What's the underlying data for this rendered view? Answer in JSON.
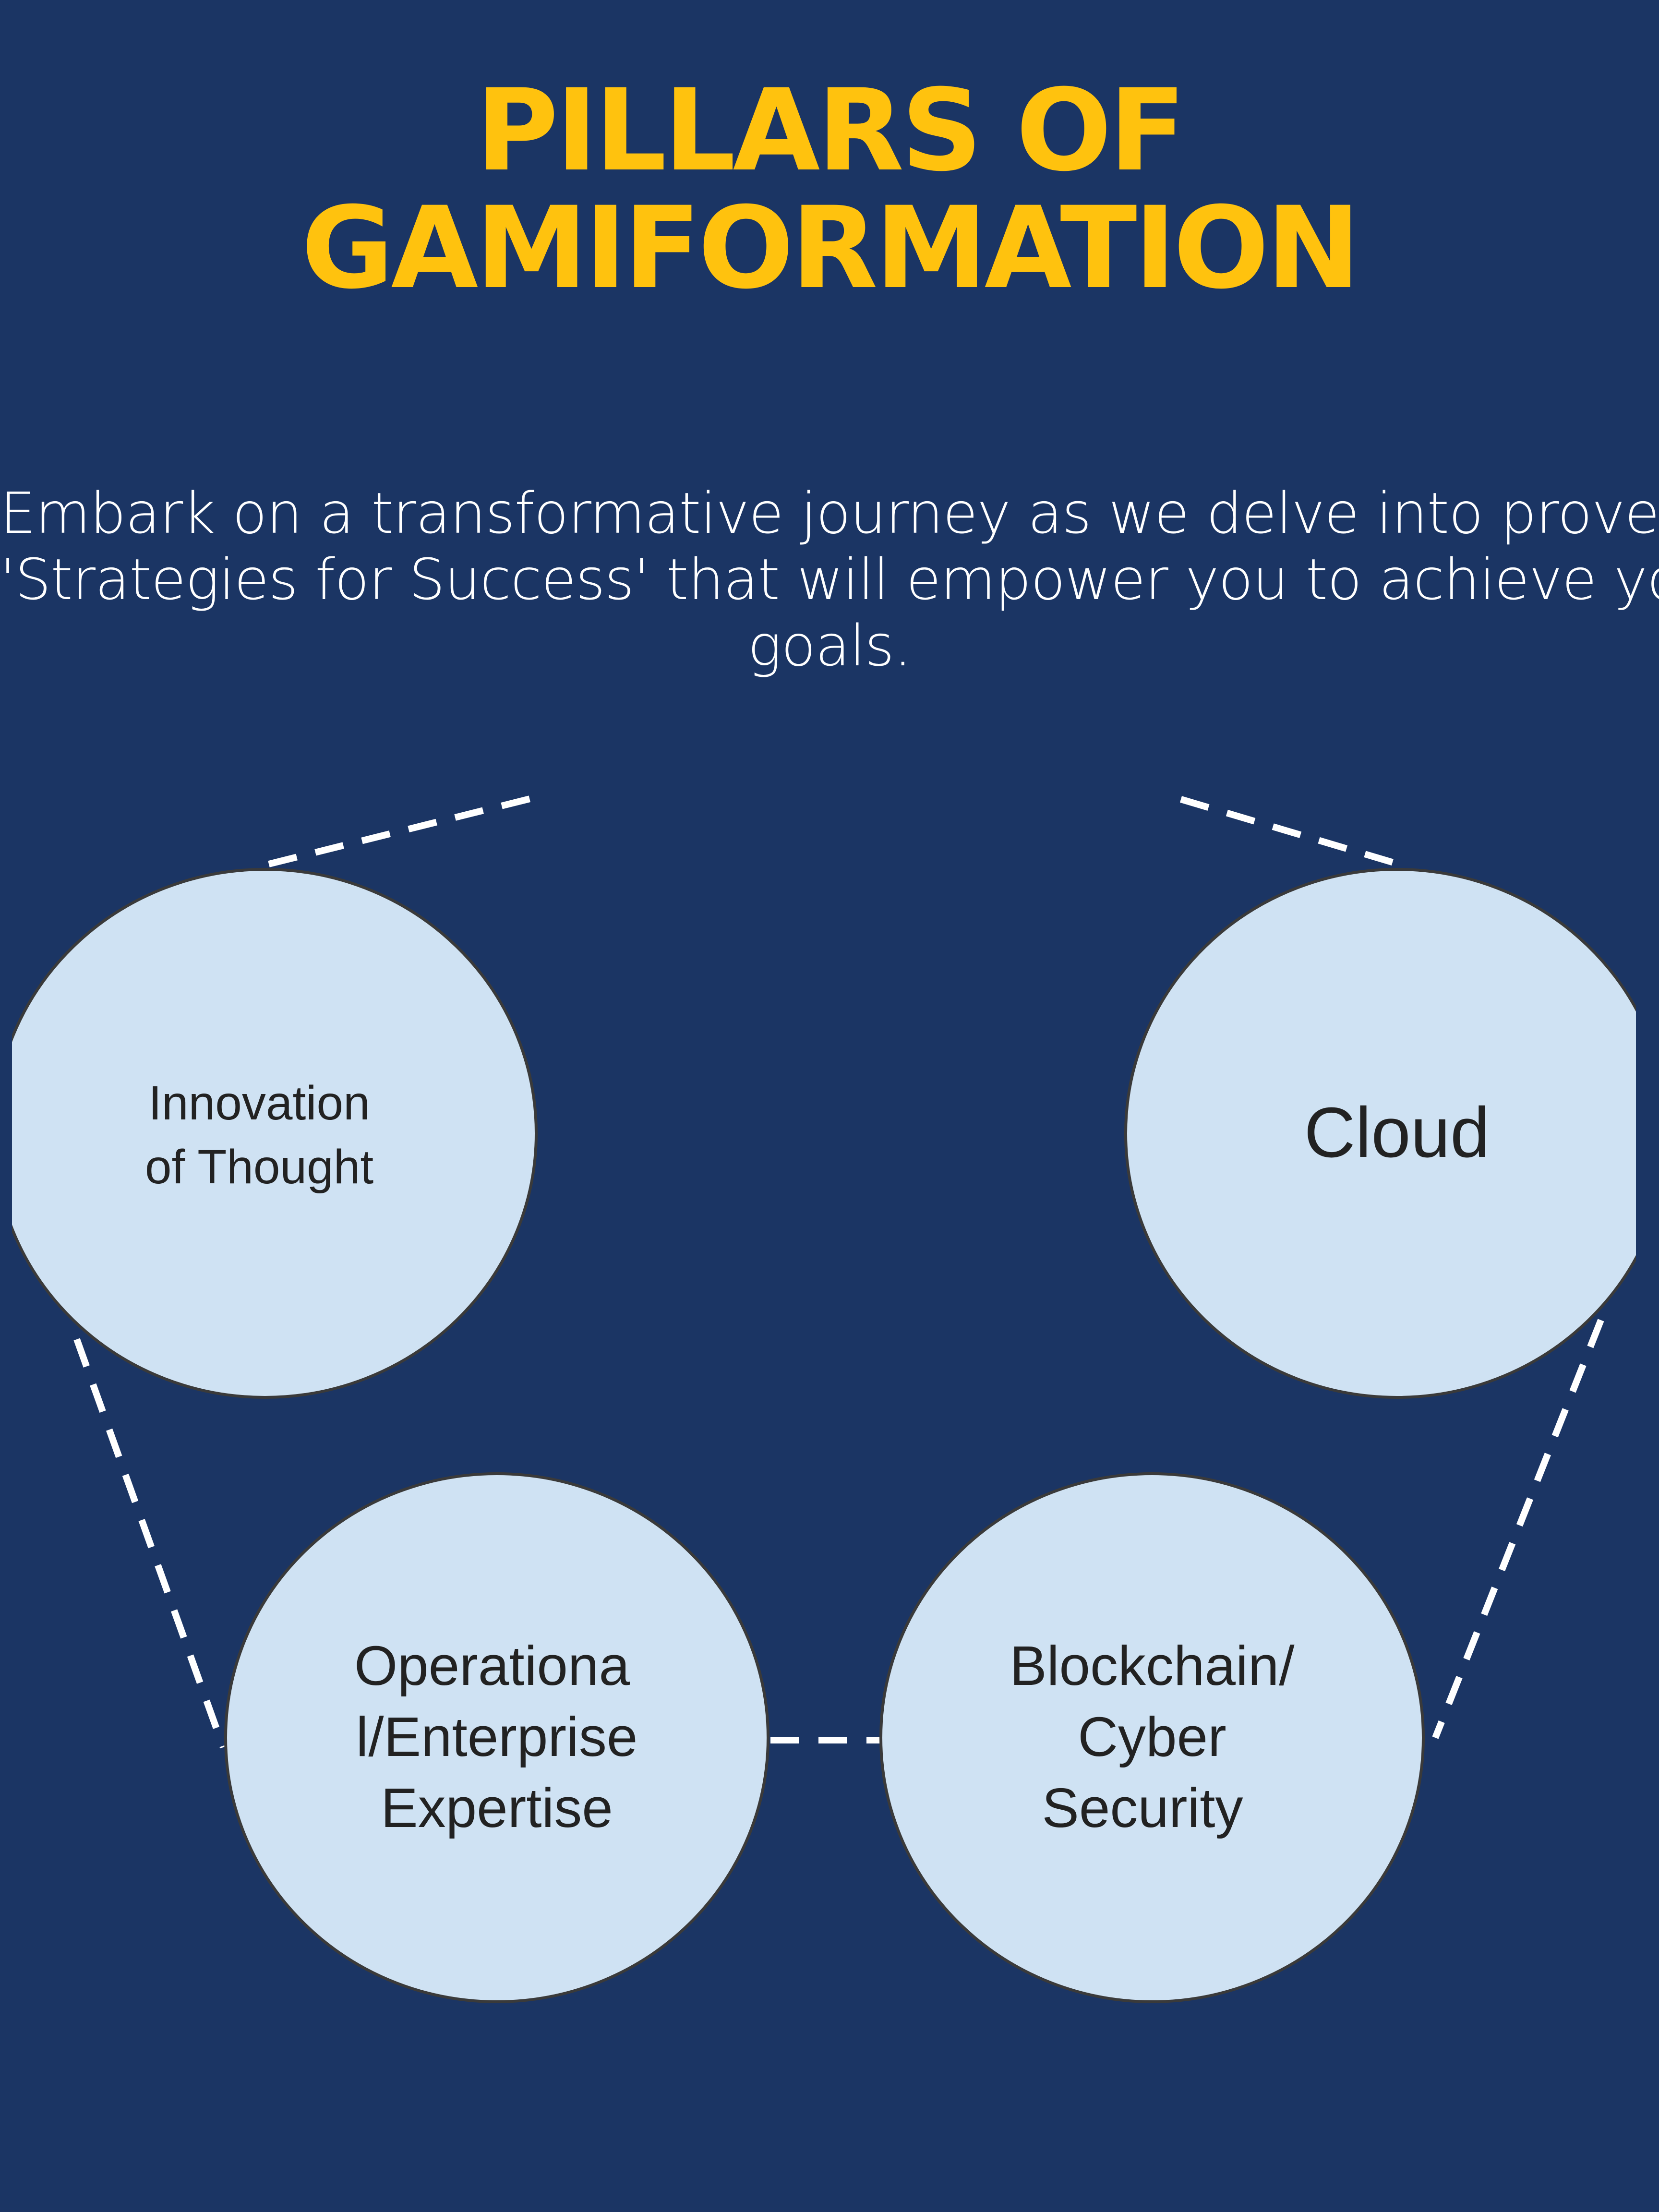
{
  "header": {
    "title_line1": "PILLARS OF",
    "title_line2": "GAMIFORMATION"
  },
  "intro": {
    "line1": "Embark on a transformative journey as we delve into proven",
    "line2": "'Strategies for Success' that will empower you to achieve your",
    "line3": "goals."
  },
  "diagram": {
    "colors": {
      "background": "#1b3564",
      "title": "#ffc20e",
      "node_fill": "#cfe2f3",
      "node_stroke": "#3a3a3a",
      "connector": "#ffffff"
    },
    "nodes": {
      "innovation": {
        "line1": "Innovation",
        "line2": "of Thought"
      },
      "cloud": {
        "line1": "Cloud"
      },
      "operational": {
        "line1": "Operationa",
        "line2": "l/Enterprise",
        "line3": "Expertise"
      },
      "blockchain": {
        "line1": "Blockchain/",
        "line2": "Cyber",
        "line3": "Security"
      }
    }
  }
}
